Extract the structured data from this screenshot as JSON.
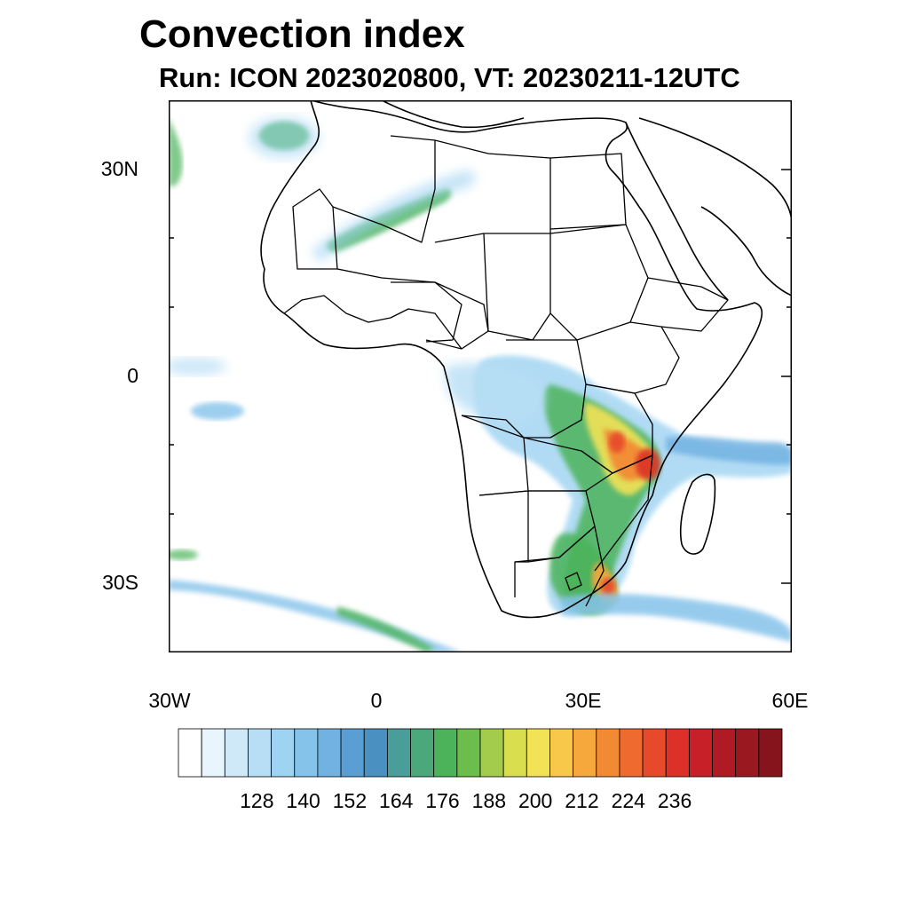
{
  "title": "Convection index",
  "subtitle": "Run: ICON 2023020800,  VT: 20230211-12UTC",
  "map": {
    "lat_labels": [
      "30N",
      "0",
      "30S"
    ],
    "lon_labels": [
      "30W",
      "0",
      "30E",
      "60E"
    ],
    "extent": {
      "lon": [
        -30,
        60
      ],
      "lat": [
        -40,
        40
      ]
    },
    "land_color": "#ffffff",
    "boundary_color": "#000000"
  },
  "colorbar": {
    "labels": [
      "128",
      "140",
      "152",
      "164",
      "176",
      "188",
      "200",
      "212",
      "224",
      "236"
    ],
    "colors": [
      "#ffffff",
      "#e8f5fc",
      "#cfe9f8",
      "#b7def5",
      "#9fd3f2",
      "#86c3ea",
      "#72b2e2",
      "#5a9fd4",
      "#4a90c0",
      "#4a9e9a",
      "#4aa87a",
      "#4cb35a",
      "#6bbd4c",
      "#a4cc4c",
      "#d8de4e",
      "#f2e256",
      "#f7c84a",
      "#f6a83c",
      "#f28a34",
      "#ee6a2e",
      "#e64a2a",
      "#dc3028",
      "#c82028",
      "#b01a24",
      "#9a1820",
      "#86141c"
    ]
  },
  "convection_cells": [
    {
      "lon": 33,
      "lat": -10,
      "value": 236
    },
    {
      "lon": 37,
      "lat": -12,
      "value": 224
    },
    {
      "lon": 35,
      "lat": -16,
      "value": 200
    },
    {
      "lon": 34,
      "lat": -6,
      "value": 188
    },
    {
      "lon": 31,
      "lat": -20,
      "value": 176
    },
    {
      "lon": 30,
      "lat": -27,
      "value": 176
    },
    {
      "lon": 27,
      "lat": -29,
      "value": 176
    },
    {
      "lon": 32,
      "lat": -30,
      "value": 200
    },
    {
      "lon": 26,
      "lat": -6,
      "value": 164
    },
    {
      "lon": 24,
      "lat": -11,
      "value": 152
    },
    {
      "lon": 5,
      "lat": 27,
      "value": 164
    },
    {
      "lon": -13,
      "lat": 35,
      "value": 164
    },
    {
      "lon": 51,
      "lat": -11,
      "value": 152
    },
    {
      "lon": 42,
      "lat": -9,
      "value": 188
    },
    {
      "lon": -22,
      "lat": -5,
      "value": 152
    }
  ]
}
